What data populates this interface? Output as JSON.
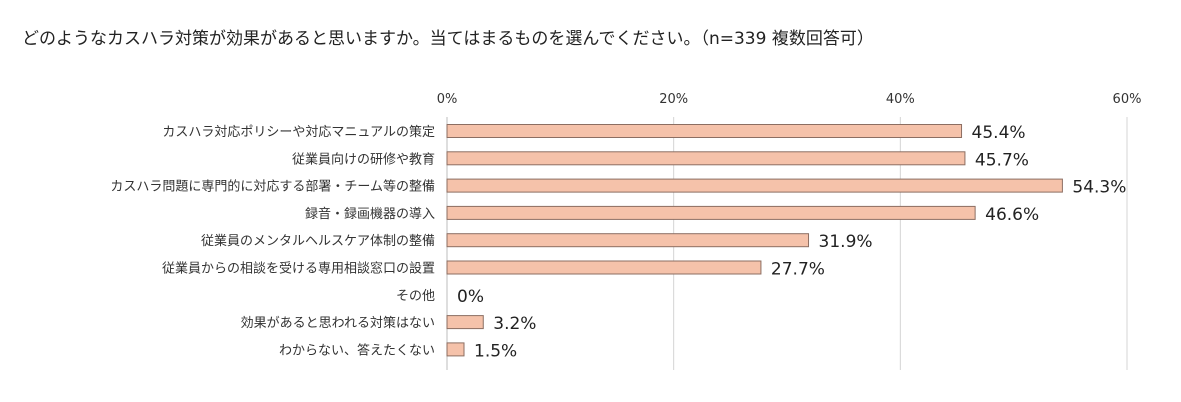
{
  "chart_data": {
    "type": "bar",
    "orientation": "horizontal",
    "title": "どのようなカスハラ対策が効果があると思いますか。当てはまるものを選んでください。（n=339 複数回答可）",
    "xlim": [
      0,
      60
    ],
    "x_ticks": [
      "0%",
      "20%",
      "40%",
      "60%"
    ],
    "x_tick_values": [
      0,
      20,
      40,
      60
    ],
    "grid": true,
    "categories": [
      "カスハラ対応ポリシーや対応マニュアルの策定",
      "従業員向けの研修や教育",
      "カスハラ問題に専門的に対応する部署・チーム等の整備",
      "録音・録画機器の導入",
      "従業員のメンタルヘルスケア体制の整備",
      "従業員からの相談を受ける専用相談窓口の設置",
      "その他",
      "効果があると思われる対策はない",
      "わからない、答えたくない"
    ],
    "values": [
      45.4,
      45.7,
      54.3,
      46.6,
      31.9,
      27.7,
      0,
      3.2,
      1.5
    ],
    "data_labels": [
      "45.4%",
      "45.7%",
      "54.3%",
      "46.6%",
      "31.9%",
      "27.7%",
      "0%",
      "3.2%",
      "1.5%"
    ],
    "colors": {
      "bar_fill": "#f5c2aa",
      "bar_stroke": "#8c6e62",
      "grid": "#d4d4d4",
      "axis": "#bdbdbd"
    }
  }
}
